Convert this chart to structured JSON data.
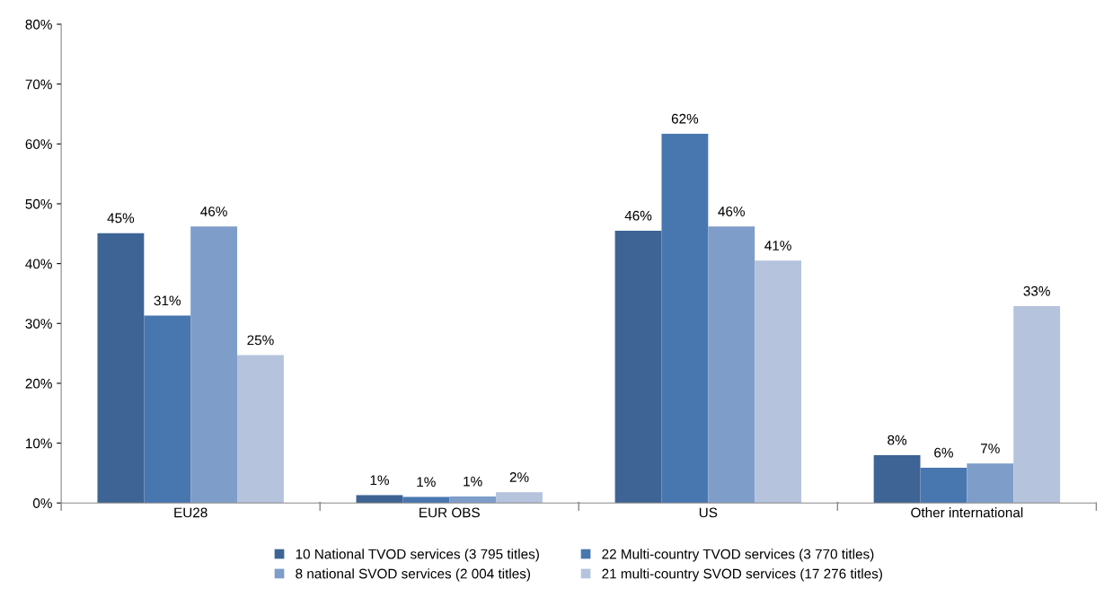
{
  "chart_data": {
    "type": "bar",
    "categories": [
      "EU28",
      "EUR OBS",
      "US",
      "Other international"
    ],
    "series": [
      {
        "name": "10 National TVOD services (3 795 titles)",
        "color": "#3d6494",
        "values": [
          45.1,
          1.3,
          45.5,
          8.0
        ],
        "value_labels": [
          "45%",
          "1%",
          "46%",
          "8%"
        ]
      },
      {
        "name": "22 Multi-country TVOD services (3 770 titles)",
        "color": "#4877b0",
        "values": [
          31.3,
          1.0,
          61.7,
          5.9
        ],
        "value_labels": [
          "31%",
          "1%",
          "62%",
          "6%"
        ]
      },
      {
        "name": "8 national SVOD services (2 004 titles)",
        "color": "#7f9dc9",
        "values": [
          46.2,
          1.1,
          46.2,
          6.6
        ],
        "value_labels": [
          "46%",
          "1%",
          "46%",
          "7%"
        ]
      },
      {
        "name": "21 multi-country SVOD services (17 276 titles)",
        "color": "#b5c3dd",
        "values": [
          24.7,
          1.8,
          40.5,
          32.9
        ],
        "value_labels": [
          "25%",
          "2%",
          "41%",
          "33%"
        ]
      }
    ],
    "ylim": [
      0,
      80
    ],
    "yticks": [
      {
        "value": 0,
        "label": "0%"
      },
      {
        "value": 10,
        "label": "10%"
      },
      {
        "value": 20,
        "label": "20%"
      },
      {
        "value": 30,
        "label": "30%"
      },
      {
        "value": 40,
        "label": "40%"
      },
      {
        "value": 50,
        "label": "50%"
      },
      {
        "value": 60,
        "label": "60%"
      },
      {
        "value": 70,
        "label": "70%"
      },
      {
        "value": 80,
        "label": "80%"
      }
    ],
    "grid": false,
    "legend": "bottom"
  }
}
